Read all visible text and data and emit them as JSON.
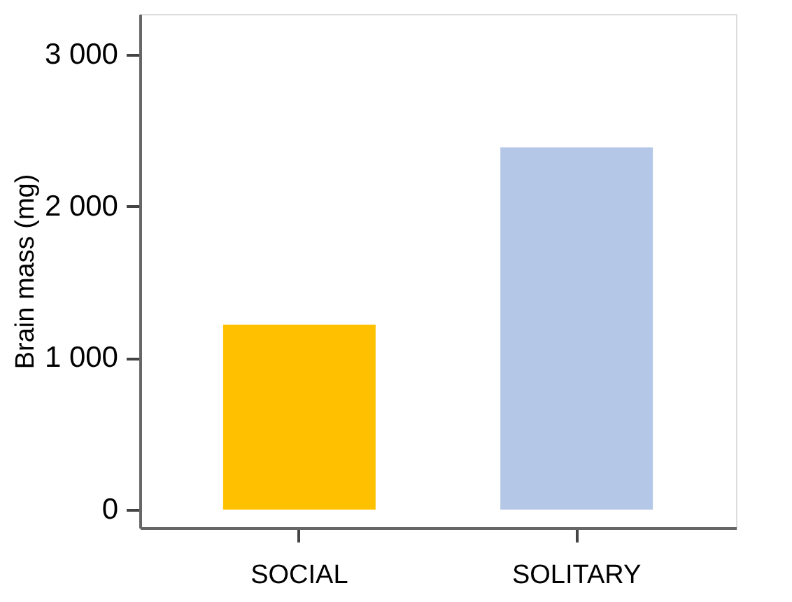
{
  "chart_data": {
    "type": "bar",
    "ylabel": "Brain mass (mg)",
    "categories": [
      "SOCIAL",
      "SOLITARY"
    ],
    "values": [
      1220,
      2390
    ],
    "colors": [
      "#ffc000",
      "#b4c7e7"
    ],
    "ylim": [
      -120,
      3270
    ],
    "yticks": [
      0,
      {
        "value": 1000,
        "label": "1 000"
      },
      {
        "value": 2000,
        "label": "2 000"
      },
      {
        "value": 3000,
        "label": "3 000"
      }
    ],
    "grid": false
  }
}
